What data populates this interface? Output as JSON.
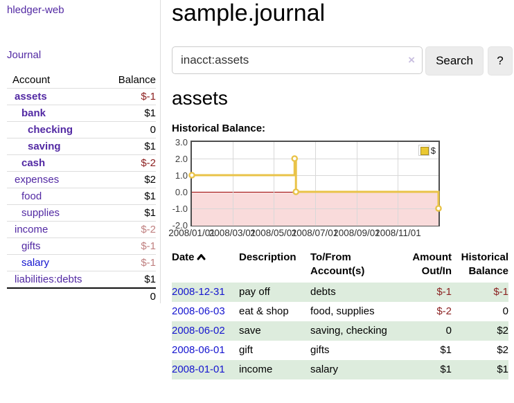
{
  "sidebar": {
    "brand": "hledger-web",
    "journal_label": "Journal",
    "accounts_table": {
      "headers": [
        "Account",
        "Balance"
      ],
      "rows": [
        {
          "name": "assets",
          "balance": "$-1",
          "level": 1,
          "bold": true,
          "balance_style": "negative-strong",
          "link_style": "visited"
        },
        {
          "name": "bank",
          "balance": "$1",
          "level": 2,
          "bold": true,
          "balance_style": "",
          "link_style": "visited"
        },
        {
          "name": "checking",
          "balance": "0",
          "level": 3,
          "bold": true,
          "balance_style": "",
          "link_style": "visited"
        },
        {
          "name": "saving",
          "balance": "$1",
          "level": 3,
          "bold": true,
          "balance_style": "",
          "link_style": "visited"
        },
        {
          "name": "cash",
          "balance": "$-2",
          "level": 2,
          "bold": true,
          "balance_style": "negative-strong",
          "link_style": "visited"
        },
        {
          "name": "expenses",
          "balance": "$2",
          "level": 1,
          "bold": false,
          "balance_style": "",
          "link_style": "visited"
        },
        {
          "name": "food",
          "balance": "$1",
          "level": 2,
          "bold": false,
          "balance_style": "",
          "link_style": "visited"
        },
        {
          "name": "supplies",
          "balance": "$1",
          "level": 2,
          "bold": false,
          "balance_style": "",
          "link_style": "visited"
        },
        {
          "name": "income",
          "balance": "$-2",
          "level": 1,
          "bold": false,
          "balance_style": "negative-soft",
          "link_style": "visited"
        },
        {
          "name": "gifts",
          "balance": "$-1",
          "level": 2,
          "bold": false,
          "balance_style": "negative-soft",
          "link_style": "visited"
        },
        {
          "name": "salary",
          "balance": "$-1",
          "level": 2,
          "bold": false,
          "balance_style": "negative-soft",
          "link_style": "unvisited"
        },
        {
          "name": "liabilities:debts",
          "balance": "$1",
          "level": 1,
          "bold": false,
          "balance_style": "",
          "link_style": "visited"
        }
      ],
      "total": "0"
    }
  },
  "header": {
    "title": "sample.journal"
  },
  "search": {
    "value": "inacct:assets",
    "clear_icon": "×",
    "button_label": "Search",
    "help_label": "?"
  },
  "account_page": {
    "heading": "assets",
    "chart_label": "Historical Balance:"
  },
  "chart_data": {
    "type": "line",
    "title": "Historical Balance",
    "step": "step-after",
    "series": [
      {
        "name": "$",
        "points": [
          {
            "date": "2008-01-01",
            "value": 1
          },
          {
            "date": "2008-06-01",
            "value": 2
          },
          {
            "date": "2008-06-03",
            "value": 0
          },
          {
            "date": "2008-12-31",
            "value": -1
          }
        ]
      }
    ],
    "x_range": [
      "2008-01-01",
      "2008-12-31"
    ],
    "ylim": [
      -2.0,
      3.0
    ],
    "yticks": [
      3.0,
      2.0,
      1.0,
      0.0,
      -1.0,
      -2.0
    ],
    "xticks": [
      "2008/01/01",
      "2008/03/01",
      "2008/05/01",
      "2008/07/01",
      "2008/09/01",
      "2008/11/01"
    ],
    "grid": true,
    "legend": {
      "label": "$",
      "position": "top-right"
    },
    "line_color": "#e9c348",
    "marker_fill": "#ffffff",
    "legend_swatch_color": "#eac832",
    "negative_region_fill": "#f9dbdb",
    "zero_line_color": "#990000"
  },
  "register_table": {
    "headers": [
      "Date",
      "Description",
      "To/From Account(s)",
      "Amount Out/In",
      "Historical Balance"
    ],
    "sort_icon": "chevron-up",
    "rows": [
      {
        "date": "2008-12-31",
        "description": "pay off",
        "accounts": "debts",
        "amount": "$-1",
        "amount_negative": true,
        "balance": "$-1",
        "balance_negative": true
      },
      {
        "date": "2008-06-03",
        "description": "eat & shop",
        "accounts": "food, supplies",
        "amount": "$-2",
        "amount_negative": true,
        "balance": "0",
        "balance_negative": false
      },
      {
        "date": "2008-06-02",
        "description": "save",
        "accounts": "saving, checking",
        "amount": "0",
        "amount_negative": false,
        "balance": "$2",
        "balance_negative": false
      },
      {
        "date": "2008-06-01",
        "description": "gift",
        "accounts": "gifts",
        "amount": "$1",
        "amount_negative": false,
        "balance": "$2",
        "balance_negative": false
      },
      {
        "date": "2008-01-01",
        "description": "income",
        "accounts": "salary",
        "amount": "$1",
        "amount_negative": false,
        "balance": "$1",
        "balance_negative": false
      }
    ]
  },
  "colors": {
    "link_visited_purple": "#5229a3",
    "link_unvisited_blue": "#1515cf",
    "negative_strong_red": "#8b1d1d",
    "negative_soft_red": "#bf7f7f",
    "row_highlight_green": "#ddecdd"
  }
}
